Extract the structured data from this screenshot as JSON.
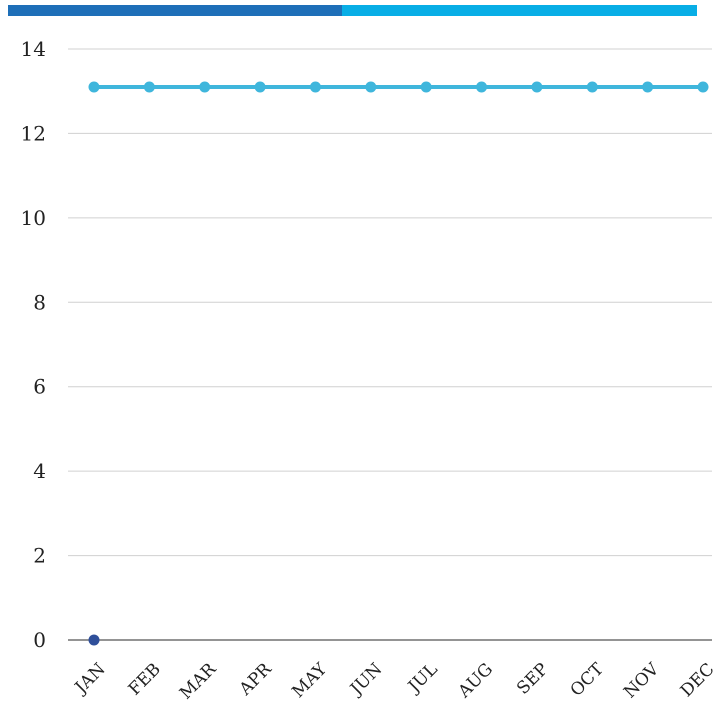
{
  "chart_data": {
    "type": "line",
    "title": "",
    "xlabel": "",
    "ylabel": "",
    "categories": [
      "JAN",
      "FEB",
      "MAR",
      "APR",
      "MAY",
      "JUN",
      "JUL",
      "AUG",
      "SEP",
      "OCT",
      "NOV",
      "DEC"
    ],
    "ylim": [
      0,
      14
    ],
    "yticks": [
      0,
      2,
      4,
      6,
      8,
      10,
      12,
      14
    ],
    "grid": true,
    "legend": "none",
    "series": [
      {
        "color": "#3fb6dc",
        "values": [
          13.1,
          13.1,
          13.1,
          13.1,
          13.1,
          13.1,
          13.1,
          13.1,
          13.1,
          13.1,
          13.1,
          13.1
        ]
      },
      {
        "color": "#2f4f9a",
        "values": [
          0,
          null,
          null,
          null,
          null,
          null,
          null,
          null,
          null,
          null,
          null,
          null
        ]
      }
    ],
    "colors": {
      "top_bar_left": "#1e6fb8",
      "top_bar_right": "#08aee6",
      "gridline": "#d0d0d0",
      "axis_line": "#555555"
    }
  }
}
